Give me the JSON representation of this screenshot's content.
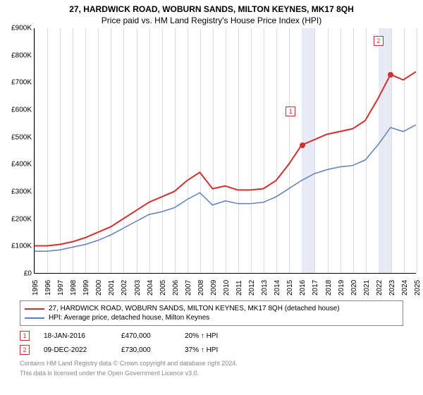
{
  "title": "27, HARDWICK ROAD, WOBURN SANDS, MILTON KEYNES, MK17 8QH",
  "subtitle": "Price paid vs. HM Land Registry's House Price Index (HPI)",
  "chart": {
    "type": "line",
    "background_color": "#ffffff",
    "grid_color": "#dddddd",
    "x_years": [
      1995,
      1996,
      1997,
      1998,
      1999,
      2000,
      2001,
      2002,
      2003,
      2004,
      2005,
      2006,
      2007,
      2008,
      2009,
      2010,
      2011,
      2012,
      2013,
      2014,
      2015,
      2016,
      2017,
      2018,
      2019,
      2020,
      2021,
      2022,
      2023,
      2024,
      2025
    ],
    "xmin": 1995,
    "xmax": 2025,
    "ymin": 0,
    "ymax": 900,
    "yticks": [
      0,
      100,
      200,
      300,
      400,
      500,
      600,
      700,
      800,
      900
    ],
    "ytick_prefix": "£",
    "ytick_suffix": "K",
    "shaded_year_color": "#e8eaf6",
    "series": {
      "property": {
        "label": "27, HARDWICK ROAD, WOBURN SANDS, MILTON KEYNES, MK17 8QH (detached house)",
        "color": "#d32f2f",
        "line_width": 2,
        "data": [
          100,
          100,
          105,
          115,
          130,
          150,
          170,
          200,
          230,
          260,
          280,
          300,
          340,
          370,
          310,
          320,
          305,
          305,
          310,
          340,
          400,
          470,
          490,
          510,
          520,
          530,
          560,
          640,
          730,
          710,
          740
        ]
      },
      "hpi": {
        "label": "HPI: Average price, detached house, Milton Keynes",
        "color": "#5c7fbf",
        "line_width": 1.5,
        "data": [
          80,
          80,
          85,
          95,
          105,
          120,
          140,
          165,
          190,
          215,
          225,
          240,
          270,
          295,
          250,
          265,
          255,
          255,
          260,
          280,
          310,
          340,
          365,
          380,
          390,
          395,
          415,
          470,
          535,
          520,
          545
        ]
      }
    },
    "markers": [
      {
        "number": "1",
        "year": 2016.05,
        "price": 470,
        "color": "#d32f2f"
      },
      {
        "number": "2",
        "year": 2022.94,
        "price": 730,
        "color": "#d32f2f"
      }
    ]
  },
  "sales": [
    {
      "number": "1",
      "date": "18-JAN-2016",
      "price": "£470,000",
      "hpi": "20% ↑ HPI",
      "color": "#d32f2f"
    },
    {
      "number": "2",
      "date": "09-DEC-2022",
      "price": "£730,000",
      "hpi": "37% ↑ HPI",
      "color": "#d32f2f"
    }
  ],
  "footnote1": "Contains HM Land Registry data © Crown copyright and database right 2024.",
  "footnote2": "This data is licensed under the Open Government Licence v3.0."
}
